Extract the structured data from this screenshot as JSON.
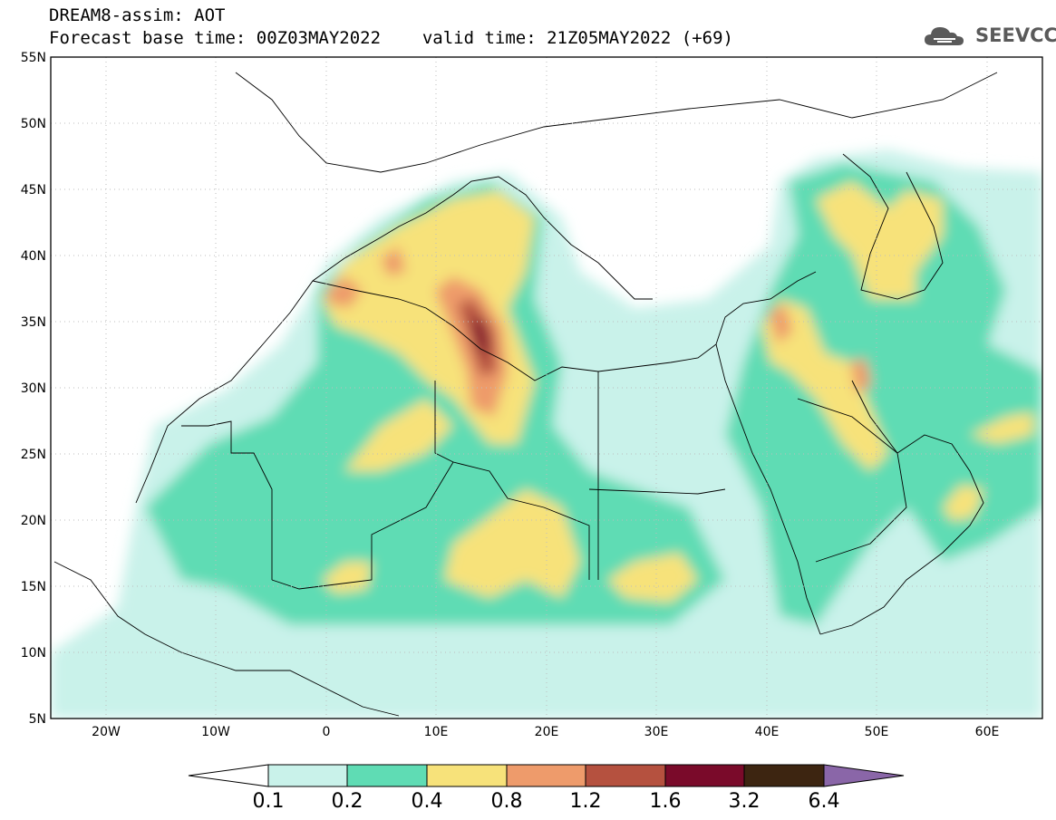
{
  "header": {
    "model_line": "DREAM8-assim: AOT",
    "base_time_line": "Forecast base time: 00Z03MAY2022",
    "valid_time_line": "valid time: 21Z05MAY2022 (+69)"
  },
  "logo": {
    "text": "SEEVCCC",
    "icon": "cloud-icon"
  },
  "axes": {
    "lat_labels": [
      "55N",
      "50N",
      "45N",
      "40N",
      "35N",
      "30N",
      "25N",
      "20N",
      "15N",
      "10N",
      "5N"
    ],
    "lon_labels": [
      "20W",
      "10W",
      "0",
      "10E",
      "20E",
      "30E",
      "40E",
      "50E",
      "60E"
    ],
    "lat_range": [
      5,
      55
    ],
    "lon_range": [
      -25,
      65
    ]
  },
  "colorbar": {
    "labels": [
      "0.1",
      "0.2",
      "0.4",
      "0.8",
      "1.2",
      "1.6",
      "3.2",
      "6.4"
    ],
    "colors": [
      "#ffffff",
      "#c9f2ea",
      "#5fdcb4",
      "#f7e27a",
      "#ee9b6b",
      "#b5513f",
      "#7a0a2a",
      "#3d2511",
      "#8a66a8"
    ]
  },
  "colors": {
    "c1": "#c9f2ea",
    "c2": "#5fdcb4",
    "c3": "#f7e27a",
    "c4": "#ee9b6b",
    "c5": "#b5513f",
    "c6": "#7a0a2a"
  }
}
